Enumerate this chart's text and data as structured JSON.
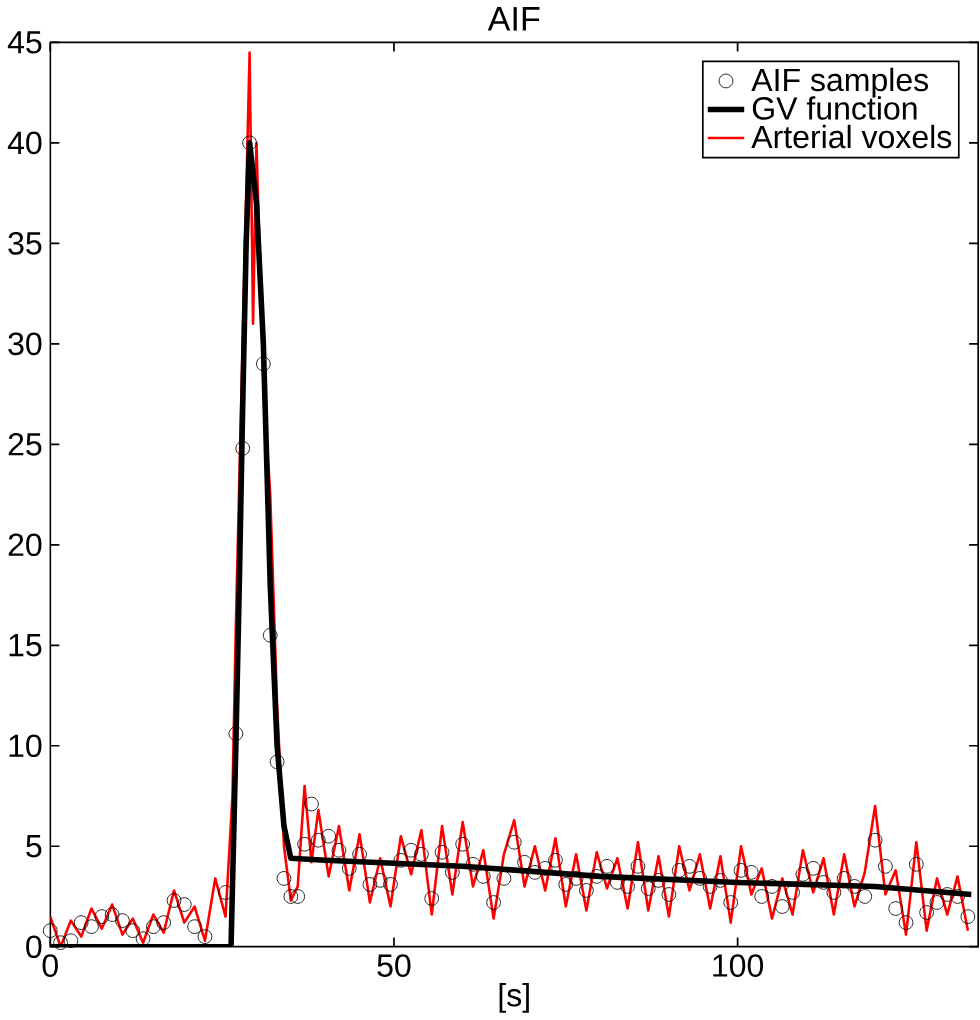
{
  "chart_data": {
    "type": "line",
    "title": "AIF",
    "xlabel": "[s]",
    "xlim": [
      0,
      135
    ],
    "ylim": [
      0,
      45
    ],
    "xticks": [
      0,
      50,
      100
    ],
    "yticks": [
      0,
      5,
      10,
      15,
      20,
      25,
      30,
      35,
      40,
      45
    ],
    "grid": false,
    "legend": "top right",
    "series": [
      {
        "name": "AIF samples",
        "type": "scatter",
        "color": "#000000",
        "marker": "circle",
        "x": [
          0,
          1.5,
          3,
          4.5,
          6,
          7.5,
          9,
          10.5,
          12,
          13.5,
          15,
          16.5,
          18,
          19.5,
          21,
          22.5,
          25.5,
          27,
          28,
          29,
          31,
          32,
          33,
          34,
          35,
          36,
          37,
          38,
          39,
          40.5,
          42,
          43.5,
          45,
          46.5,
          48,
          49.5,
          51,
          52.5,
          54,
          55.5,
          57,
          58.5,
          60,
          61.5,
          63,
          64.5,
          66,
          67.5,
          69,
          70.5,
          72,
          73.5,
          75,
          76.5,
          78,
          79.5,
          81,
          82.5,
          84,
          85.5,
          87,
          88.5,
          90,
          91.5,
          93,
          94.5,
          96,
          97.5,
          99,
          100.5,
          102,
          103.5,
          105,
          106.5,
          108,
          109.5,
          111,
          112.5,
          114,
          115.5,
          117,
          118.5,
          120,
          121.5,
          123,
          124.5,
          126,
          127.5,
          129,
          130.5,
          132,
          133.5
        ],
        "values": [
          0.8,
          0.2,
          0.3,
          1.2,
          1.0,
          1.5,
          1.6,
          1.3,
          0.8,
          0.4,
          1.0,
          1.2,
          2.3,
          2.1,
          1.0,
          0.5,
          2.7,
          10.6,
          24.8,
          40,
          29,
          15.5,
          9.2,
          3.4,
          2.5,
          2.5,
          5.1,
          7.1,
          5.3,
          5.5,
          4.8,
          3.9,
          4.6,
          3.1,
          3.3,
          3.1,
          4.3,
          4.8,
          4.6,
          2.4,
          4.7,
          3.7,
          5.1,
          4.1,
          3.5,
          2.2,
          3.4,
          5.2,
          4.2,
          3.7,
          3.9,
          4.3,
          3.1,
          3.4,
          2.8,
          3.5,
          4.0,
          3.2,
          3.0,
          4.0,
          2.9,
          3.3,
          2.6,
          3.8,
          4.0,
          3.4,
          3.0,
          3.3,
          2.2,
          3.8,
          3.7,
          2.5,
          3.0,
          2.0,
          2.7,
          3.6,
          3.9,
          3.2,
          2.7,
          3.4,
          3.0,
          2.5,
          5.3,
          4.0,
          1.9,
          1.2,
          4.1,
          1.7,
          2.2,
          2.6,
          2.5,
          1.5
        ]
      },
      {
        "name": "GV function",
        "color": "#000000",
        "line_style": "solid",
        "marker": "none",
        "x": [
          0,
          26.3,
          27,
          27.5,
          28,
          28.5,
          29,
          30,
          31,
          32,
          33,
          34,
          35,
          40,
          60,
          80,
          100,
          120,
          134
        ],
        "values": [
          0,
          0,
          10,
          18,
          27,
          35,
          40,
          37,
          30,
          18,
          10,
          6,
          4.4,
          4.3,
          4.0,
          3.5,
          3.2,
          3.0,
          2.6
        ]
      },
      {
        "name": "Arterial voxels",
        "color": "#ff0000",
        "line_style": "solid",
        "marker": "none",
        "x": [
          0,
          1.5,
          3,
          4.5,
          6,
          7.5,
          9,
          10.5,
          12,
          13.5,
          15,
          16.5,
          18,
          19.5,
          21,
          22.5,
          24,
          25.5,
          26.5,
          27,
          28,
          29,
          29.5,
          30,
          31,
          32,
          33,
          34,
          35,
          36,
          37,
          38,
          39,
          40.5,
          42,
          43.5,
          45,
          46.5,
          48,
          49.5,
          51,
          52.5,
          54,
          55.5,
          57,
          58.5,
          60,
          61.5,
          63,
          64.5,
          66,
          67.5,
          69,
          70.5,
          72,
          73.5,
          75,
          76.5,
          78,
          79.5,
          81,
          82.5,
          84,
          85.5,
          87,
          88.5,
          90,
          91.5,
          93,
          94.5,
          96,
          97.5,
          99,
          100.5,
          102,
          103.5,
          105,
          106.5,
          108,
          109.5,
          111,
          112.5,
          114,
          115.5,
          117,
          118.5,
          120,
          121.5,
          123,
          124.5,
          126,
          127.5,
          129,
          130.5,
          132,
          133.5
        ],
        "values": [
          1.5,
          0,
          1.3,
          0.5,
          1.9,
          0.9,
          2.1,
          0.6,
          1.4,
          0.2,
          1.6,
          0.7,
          2.8,
          1.2,
          2.0,
          0.3,
          3.4,
          1.5,
          7.5,
          16,
          null,
          44.5,
          31,
          40,
          28,
          22.5,
          12,
          5,
          2.3,
          3,
          8,
          4.2,
          6.8,
          3.5,
          6.0,
          2.8,
          5.6,
          2.2,
          4.4,
          2.0,
          5.5,
          3.6,
          5.8,
          1.6,
          6.0,
          2.6,
          6.2,
          3.0,
          4.8,
          1.4,
          4.6,
          6.3,
          3.0,
          5.0,
          2.8,
          5.4,
          2.0,
          4.6,
          1.8,
          4.7,
          2.9,
          4.4,
          1.9,
          5.2,
          1.8,
          4.5,
          1.5,
          5.0,
          2.8,
          4.6,
          1.9,
          4.5,
          1.2,
          5.0,
          2.6,
          3.9,
          1.4,
          3.4,
          1.6,
          4.8,
          2.7,
          4.4,
          1.6,
          4.6,
          2.0,
          3.7,
          7.0,
          2.6,
          3.8,
          0.6,
          5.2,
          0.8,
          3.4,
          1.6,
          3.5,
          0.8
        ]
      }
    ]
  }
}
